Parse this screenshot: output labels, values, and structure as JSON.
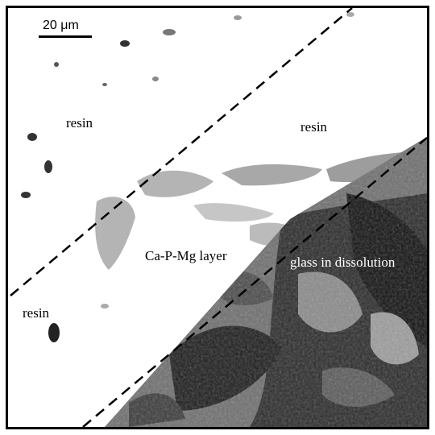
{
  "scale_bar": {
    "label": "20 μm"
  },
  "regions": {
    "resin_top_left": "resin",
    "resin_top_right": "resin",
    "resin_bottom_left": "resin",
    "layer": "Ca-P-Mg layer",
    "glass": "glass in dissolution"
  },
  "colors": {
    "frame": "#000000",
    "background": "#ffffff",
    "layer_gray": "#a8a8a8",
    "glass_dark": "#1a1a1a",
    "glass_mid": "#6e6e6e",
    "label_on_dark": "#ffffff",
    "label_on_light": "#000000"
  }
}
